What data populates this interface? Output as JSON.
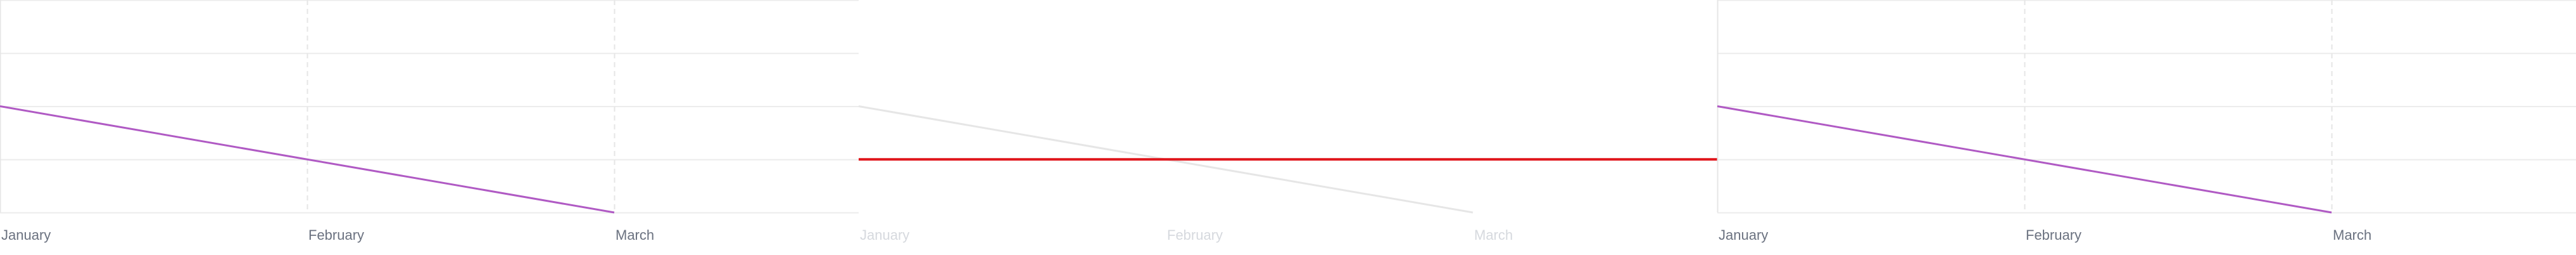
{
  "chart_data": [
    {
      "type": "line",
      "categories": [
        "January",
        "February",
        "March"
      ],
      "ylim": [
        0,
        4
      ],
      "grid": true,
      "series": [
        {
          "values": [
            2,
            1,
            0
          ],
          "color": "#b05ac4"
        }
      ]
    },
    {
      "type": "line",
      "categories": [
        "January",
        "February",
        "March"
      ],
      "ylim": [
        0,
        4
      ],
      "grid": false,
      "faded": true,
      "series": [
        {
          "values": [
            2,
            1,
            0
          ],
          "color": "#e6e6e6"
        },
        {
          "values": [
            1,
            1,
            1
          ],
          "color": "#e0161c"
        }
      ]
    },
    {
      "type": "line",
      "categories": [
        "January",
        "February",
        "March"
      ],
      "ylim": [
        0,
        4
      ],
      "grid": true,
      "series": [
        {
          "values": [
            2,
            1,
            0
          ],
          "color": "#b05ac4"
        }
      ]
    }
  ]
}
